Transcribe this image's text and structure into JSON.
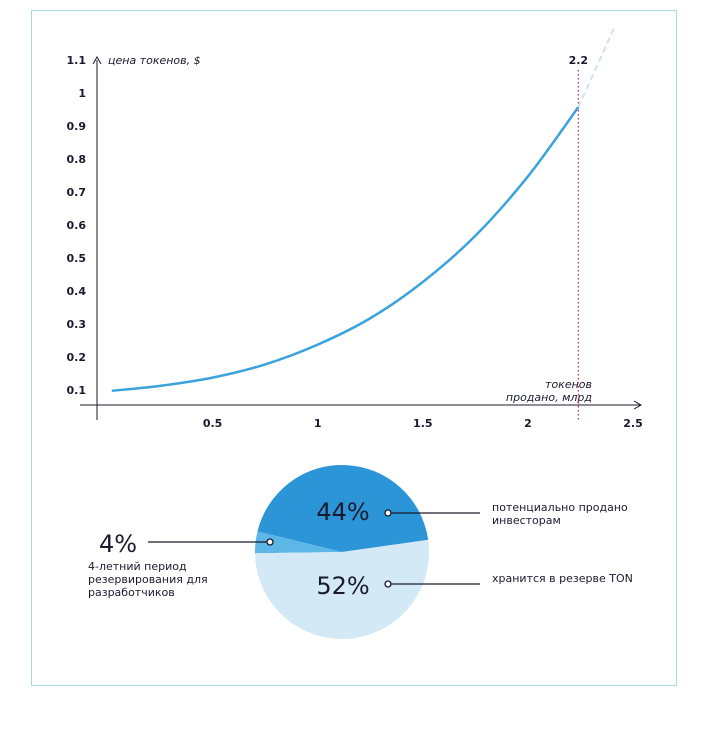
{
  "chart_data": [
    {
      "type": "line",
      "ylabel": "цена токенов, $",
      "xlabel": [
        "токенов",
        "продано, млрд"
      ],
      "x": [
        0.02,
        0.25,
        0.5,
        0.75,
        1,
        1.25,
        1.5,
        1.75,
        2,
        2.24,
        2.41
      ],
      "series": [
        {
          "color": "#3aa3dc",
          "values": [
            0.1,
            0.115,
            0.14,
            0.18,
            0.24,
            0.32,
            0.43,
            0.57,
            0.75,
            0.96,
            null
          ]
        },
        {
          "color": "#cfe2f1",
          "dash": true,
          "values": [
            null,
            null,
            null,
            null,
            null,
            null,
            null,
            null,
            null,
            0.96,
            1.2
          ]
        }
      ],
      "xlim": [
        -0.05,
        2.5
      ],
      "xticks": [
        0.5,
        1,
        1.5,
        2,
        2.5
      ],
      "ylim": [
        0.06,
        1.1
      ],
      "yticks": [
        0.1,
        0.2,
        0.3,
        0.4,
        0.5,
        0.6,
        0.7,
        0.8,
        0.9,
        1,
        1.1
      ],
      "annotation": {
        "x": 2.24,
        "label": "2.2",
        "color": "#e0245e"
      }
    },
    {
      "type": "pie",
      "values": [
        44,
        4,
        52
      ],
      "value_labels": [
        "44%",
        "4%",
        "52%"
      ],
      "categories": [
        "потенциально продано инвесторам",
        "4-летний период резервирования для разработчиков",
        "хранится в резерве TON"
      ],
      "colors": [
        "#2b95d8",
        "#5cb6e6",
        "#d3e9f6"
      ]
    }
  ]
}
